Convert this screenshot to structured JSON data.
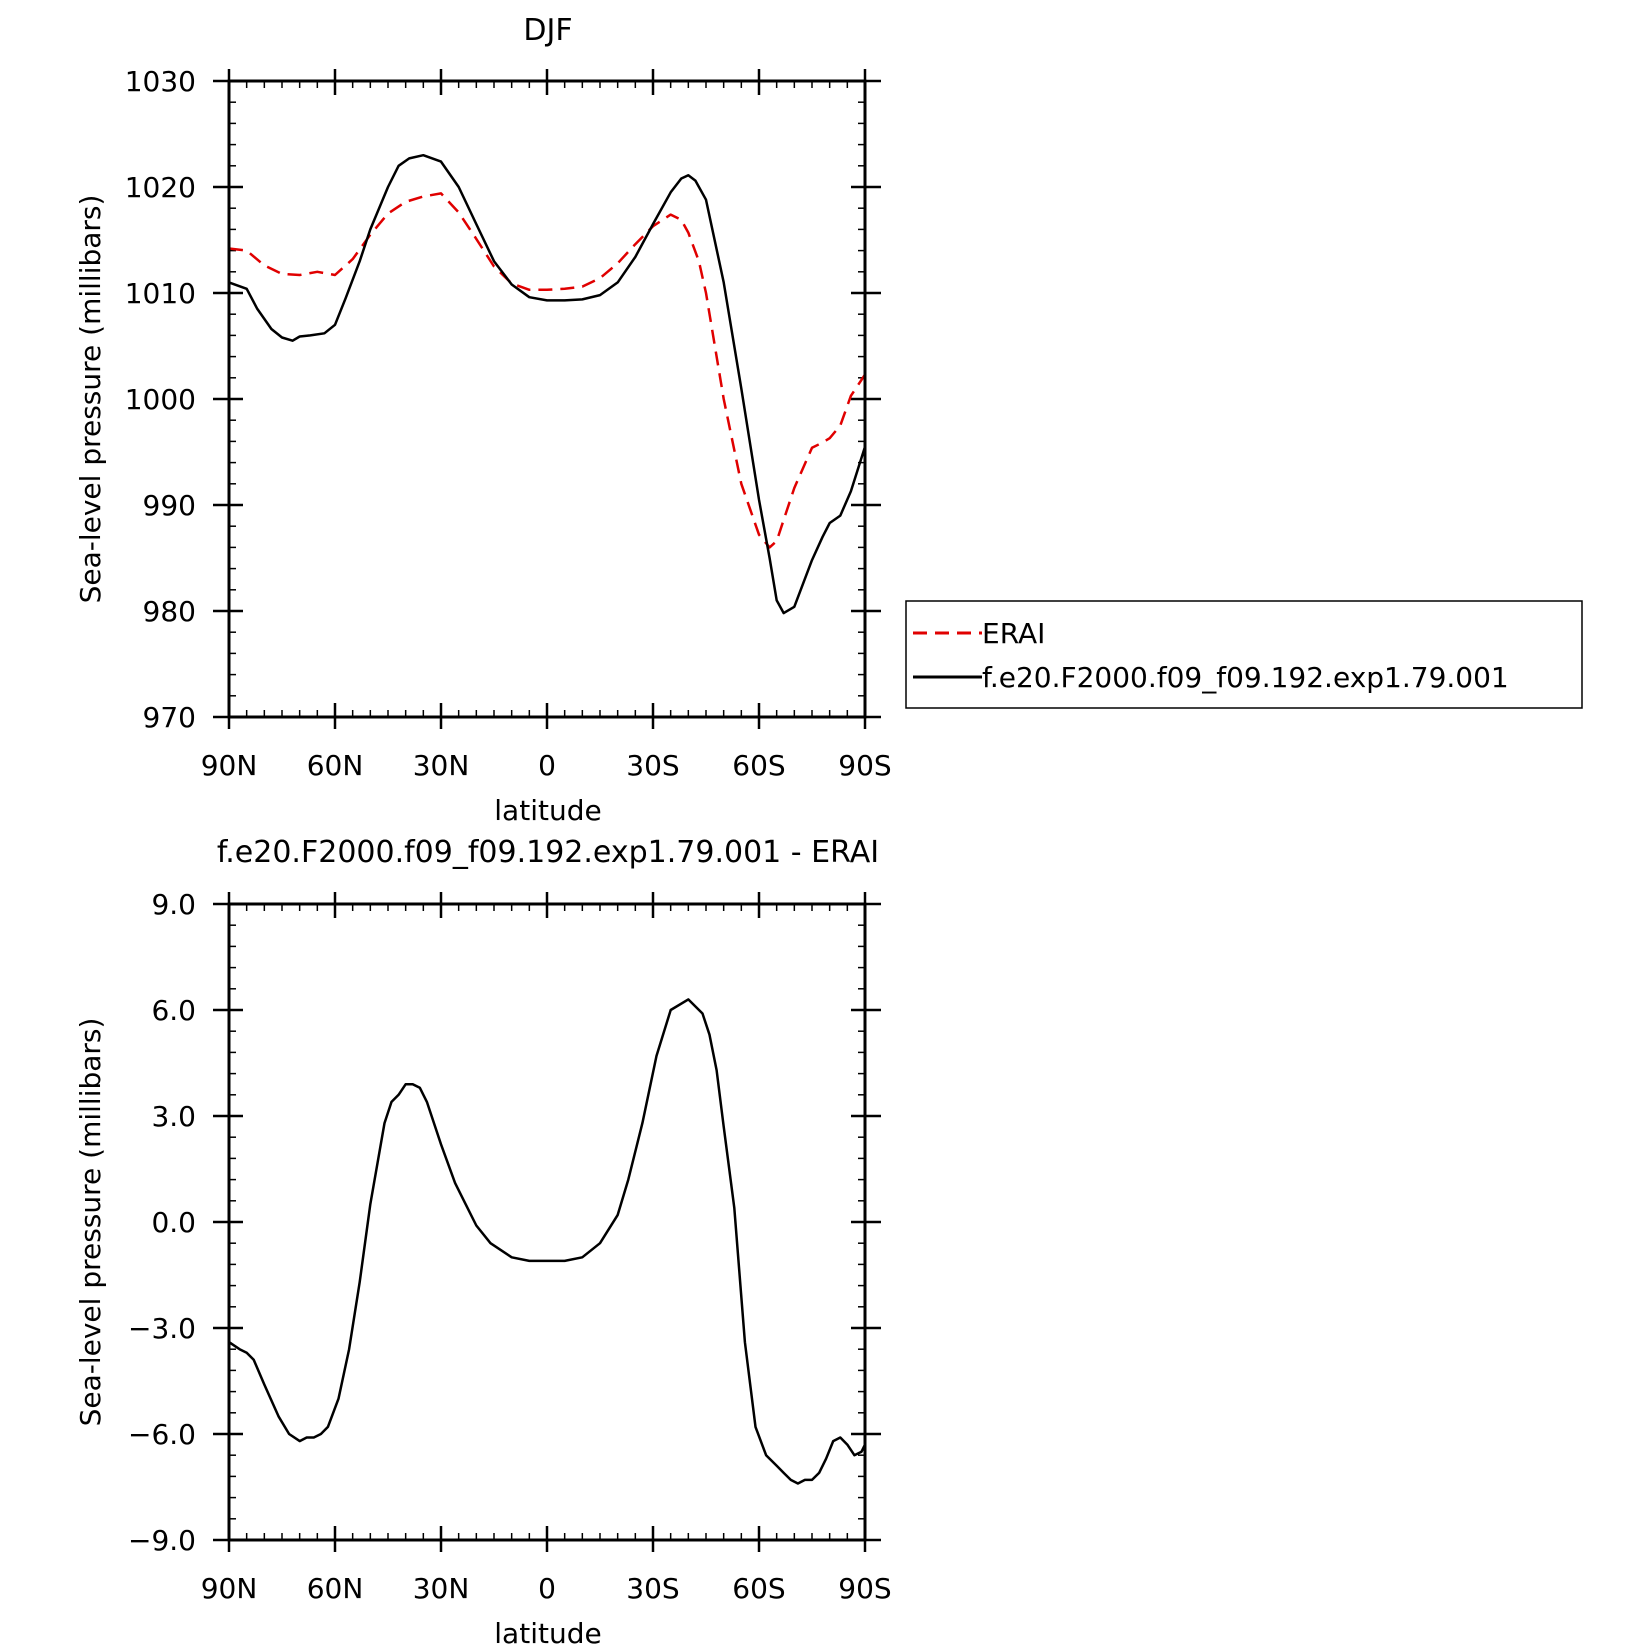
{
  "chart_data": [
    {
      "type": "line",
      "title": "DJF",
      "xlabel": "latitude",
      "ylabel": "Sea-level pressure (millibars)",
      "xlim": [
        90,
        -90
      ],
      "ylim": [
        970,
        1030
      ],
      "xticks": [
        {
          "value": 90,
          "label": "90N"
        },
        {
          "value": 60,
          "label": "60N"
        },
        {
          "value": 30,
          "label": "30N"
        },
        {
          "value": 0,
          "label": "0"
        },
        {
          "value": -30,
          "label": "30S"
        },
        {
          "value": -60,
          "label": "60S"
        },
        {
          "value": -90,
          "label": "90S"
        }
      ],
      "yticks": [
        {
          "value": 1030,
          "label": "1030"
        },
        {
          "value": 1020,
          "label": "1020"
        },
        {
          "value": 1010,
          "label": "1010"
        },
        {
          "value": 1000,
          "label": "1000"
        },
        {
          "value": 990,
          "label": "990"
        },
        {
          "value": 980,
          "label": "980"
        },
        {
          "value": 970,
          "label": "970"
        }
      ],
      "legend": "right",
      "series": [
        {
          "name": "ERAI",
          "color": "#e00000",
          "dash": true,
          "x": [
            90,
            85,
            80,
            75,
            70,
            65,
            60,
            55,
            50,
            45,
            40,
            35,
            30,
            25,
            20,
            15,
            10,
            5,
            0,
            -5,
            -10,
            -15,
            -20,
            -25,
            -30,
            -35,
            -38,
            -40,
            -43,
            -45,
            -50,
            -55,
            -60,
            -63,
            -65,
            -67,
            -70,
            -75,
            -78,
            -80,
            -83,
            -86,
            -90
          ],
          "y": [
            1014.2,
            1014.0,
            1012.6,
            1011.8,
            1011.7,
            1012.0,
            1011.7,
            1013.2,
            1015.5,
            1017.5,
            1018.6,
            1019.1,
            1019.4,
            1017.6,
            1015.1,
            1012.5,
            1010.9,
            1010.3,
            1010.3,
            1010.4,
            1010.6,
            1011.4,
            1012.8,
            1014.6,
            1016.3,
            1017.4,
            1016.9,
            1015.7,
            1013.0,
            1010.0,
            1000.0,
            992.0,
            987.2,
            986.0,
            986.6,
            988.6,
            991.6,
            995.4,
            995.9,
            996.3,
            997.5,
            1000.3,
            1002.3
          ]
        },
        {
          "name": "f.e20.F2000.f09_f09.192.exp1.79.001",
          "color": "#000000",
          "dash": false,
          "x": [
            90,
            85,
            82,
            78,
            75,
            72,
            70,
            67,
            63,
            60,
            57,
            53,
            50,
            45,
            42,
            39,
            35,
            30,
            25,
            20,
            15,
            10,
            5,
            0,
            -5,
            -10,
            -15,
            -20,
            -25,
            -30,
            -35,
            -38,
            -40,
            -42,
            -45,
            -50,
            -55,
            -60,
            -63,
            -65,
            -67,
            -70,
            -75,
            -78,
            -80,
            -83,
            -86,
            -90
          ],
          "y": [
            1011.0,
            1010.4,
            1008.5,
            1006.6,
            1005.8,
            1005.5,
            1005.9,
            1006.0,
            1006.2,
            1007.0,
            1009.5,
            1013.0,
            1016.0,
            1020.0,
            1022.0,
            1022.7,
            1023.0,
            1022.4,
            1020.0,
            1016.5,
            1013.0,
            1010.8,
            1009.6,
            1009.3,
            1009.3,
            1009.4,
            1009.8,
            1011.0,
            1013.4,
            1016.5,
            1019.5,
            1020.8,
            1021.1,
            1020.6,
            1018.8,
            1011.0,
            1001.0,
            990.5,
            985.0,
            981.0,
            979.8,
            980.4,
            984.8,
            987.0,
            988.3,
            989.0,
            991.3,
            995.5
          ]
        }
      ]
    },
    {
      "type": "line",
      "title": "f.e20.F2000.f09_f09.192.exp1.79.001 - ERAI",
      "xlabel": "latitude",
      "ylabel": "Sea-level pressure (millibars)",
      "xlim": [
        90,
        -90
      ],
      "ylim": [
        -9.0,
        9.0
      ],
      "xticks": [
        {
          "value": 90,
          "label": "90N"
        },
        {
          "value": 60,
          "label": "60N"
        },
        {
          "value": 30,
          "label": "30N"
        },
        {
          "value": 0,
          "label": "0"
        },
        {
          "value": -30,
          "label": "30S"
        },
        {
          "value": -60,
          "label": "60S"
        },
        {
          "value": -90,
          "label": "90S"
        }
      ],
      "yticks": [
        {
          "value": 9.0,
          "label": "9.0"
        },
        {
          "value": 6.0,
          "label": "6.0"
        },
        {
          "value": 3.0,
          "label": "3.0"
        },
        {
          "value": 0.0,
          "label": "0.0"
        },
        {
          "value": -3.0,
          "label": "−3.0"
        },
        {
          "value": -6.0,
          "label": "−6.0"
        },
        {
          "value": -9.0,
          "label": "−9.0"
        }
      ],
      "series": [
        {
          "color": "#000000",
          "dash": false,
          "x": [
            90,
            87,
            85,
            83,
            80,
            76,
            73,
            70,
            68,
            66,
            64,
            62,
            59,
            56,
            53,
            50,
            46,
            44,
            42,
            40,
            38,
            36,
            34,
            30,
            26,
            23,
            20,
            16,
            10,
            5,
            0,
            -5,
            -10,
            -15,
            -20,
            -23,
            -27,
            -31,
            -35,
            -40,
            -44,
            -46,
            -48,
            -50,
            -53,
            -56,
            -59,
            -62,
            -65,
            -67,
            -69,
            -71,
            -73,
            -75,
            -77,
            -79,
            -81,
            -83,
            -85,
            -87,
            -89,
            -90
          ],
          "y": [
            -3.4,
            -3.6,
            -3.7,
            -3.9,
            -4.6,
            -5.5,
            -6.0,
            -6.2,
            -6.1,
            -6.1,
            -6.0,
            -5.8,
            -5.0,
            -3.6,
            -1.7,
            0.5,
            2.8,
            3.4,
            3.6,
            3.9,
            3.9,
            3.8,
            3.4,
            2.2,
            1.1,
            0.5,
            -0.1,
            -0.6,
            -1.0,
            -1.1,
            -1.1,
            -1.1,
            -1.0,
            -0.6,
            0.2,
            1.2,
            2.8,
            4.7,
            6.0,
            6.3,
            5.9,
            5.3,
            4.3,
            2.7,
            0.4,
            -3.4,
            -5.8,
            -6.6,
            -6.9,
            -7.1,
            -7.3,
            -7.4,
            -7.3,
            -7.3,
            -7.1,
            -6.7,
            -6.2,
            -6.1,
            -6.3,
            -6.6,
            -6.5,
            -6.3
          ]
        }
      ]
    }
  ]
}
